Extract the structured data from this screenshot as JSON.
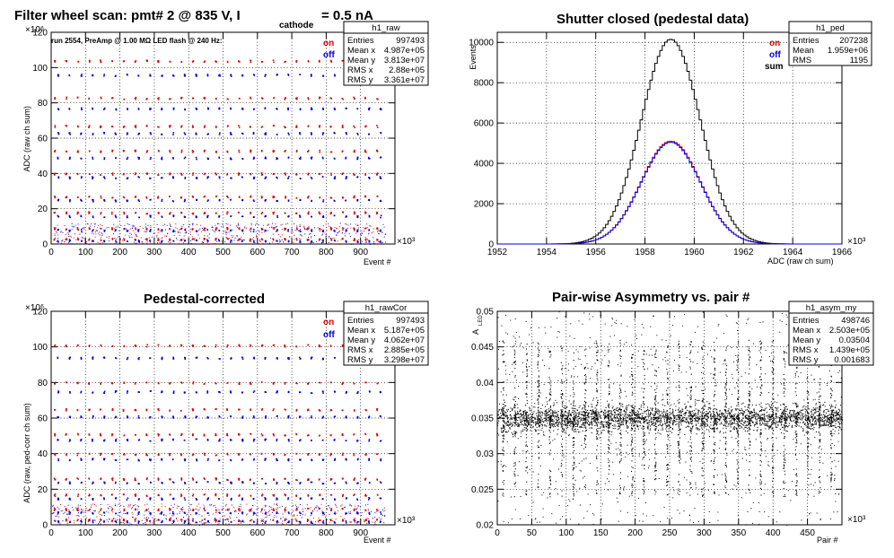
{
  "panels": {
    "raw": {
      "title_prefix": "Filter wheel scan: pmt#   2 @   835 V, I",
      "title_subscript": "cathode",
      "title_suffix": "= 0.5 nA",
      "run_info": "run 2554, PreAmp @ 1.00 MΩ   LED flash @  240 Hz:",
      "y_exponent": "×10⁶",
      "x_exponent": "×10³",
      "xlabel": "Event #",
      "ylabel": "ADC (raw ch sum)",
      "legend_on": "on",
      "legend_off": "off",
      "stats": {
        "name": "h1_raw",
        "rows": [
          [
            "Entries",
            "997493"
          ],
          [
            "Mean x",
            "4.987e+05"
          ],
          [
            "Mean y",
            "3.813e+07"
          ],
          [
            "RMS x",
            "2.88e+05"
          ],
          [
            "RMS y",
            "3.361e+07"
          ]
        ]
      }
    },
    "ped": {
      "title": "Shutter closed (pedestal data)",
      "ylabel": "Events",
      "x_exponent": "×10³",
      "xlabel": "ADC (raw ch sum)",
      "legend_on": "on",
      "legend_off": "off",
      "legend_sum": "sum",
      "stats": {
        "name": "h1_ped",
        "rows": [
          [
            "Entries",
            "207238"
          ],
          [
            "Mean",
            "1.959e+06"
          ],
          [
            "RMS",
            "1195"
          ]
        ]
      }
    },
    "cor": {
      "title": "Pedestal-corrected",
      "y_exponent": "×10⁶",
      "x_exponent": "×10³",
      "xlabel": "Event #",
      "ylabel": "ADC (raw, ped-corr ch sum)",
      "legend_on": "on",
      "legend_off": "off",
      "stats": {
        "name": "h1_rawCor",
        "rows": [
          [
            "Entries",
            "997493"
          ],
          [
            "Mean x",
            "5.187e+05"
          ],
          [
            "Mean y",
            "4.062e+07"
          ],
          [
            "RMS x",
            "2.885e+05"
          ],
          [
            "RMS y",
            "3.298e+07"
          ]
        ]
      }
    },
    "asym": {
      "title": "Pair-wise Asymmetry vs. pair #",
      "ylabel": "A",
      "ylabel_sub": "LED",
      "x_exponent": "×10³",
      "xlabel": "Pair #",
      "stats": {
        "name": "h1_asym_my",
        "rows": [
          [
            "Entries",
            "498746"
          ],
          [
            "Mean x",
            "2.503e+05"
          ],
          [
            "Mean y",
            "0.03504"
          ],
          [
            "RMS x",
            "1.439e+05"
          ],
          [
            "RMS y",
            "0.001683"
          ]
        ]
      }
    }
  },
  "colors": {
    "on": "#e00000",
    "off": "#0000e0",
    "sum": "#000000",
    "grid": "#000000"
  },
  "chart_data": [
    {
      "type": "scatter",
      "title": "Filter wheel scan: pmt#   2 @   835 V, I cathode = 0.5 nA",
      "xlabel": "Event #",
      "ylabel": "ADC (raw ch sum)",
      "x_scale_label": "×10³",
      "y_scale_label": "×10⁶",
      "xlim": [
        0,
        1000
      ],
      "ylim": [
        0,
        120
      ],
      "xticks": [
        0,
        100,
        200,
        300,
        400,
        500,
        600,
        700,
        800,
        900
      ],
      "yticks": [
        0,
        20,
        40,
        60,
        80,
        100,
        120
      ],
      "grid": true,
      "filter_step_events_k": 33.5,
      "series": [
        {
          "name": "on",
          "color": "#e00000",
          "levels": [
            104,
            83,
            67,
            53,
            40,
            27,
            18,
            9,
            3
          ]
        },
        {
          "name": "off",
          "color": "#0000e0",
          "levels": [
            96,
            77,
            63,
            49,
            38,
            25,
            16,
            8,
            2
          ]
        }
      ]
    },
    {
      "type": "line",
      "title": "Shutter closed (pedestal data)",
      "xlabel": "ADC (raw ch sum)",
      "ylabel": "Events",
      "x_scale_label": "×10³",
      "xlim": [
        1952,
        1966
      ],
      "ylim": [
        0,
        10500
      ],
      "xticks": [
        1952,
        1954,
        1956,
        1958,
        1960,
        1962,
        1964,
        1966
      ],
      "yticks": [
        0,
        2000,
        4000,
        6000,
        8000,
        10000
      ],
      "grid": true,
      "series": [
        {
          "name": "sum",
          "color": "#000000",
          "peak_x": 1959.05,
          "peak": 10150,
          "sigma": 1.2
        },
        {
          "name": "on",
          "color": "#e00000",
          "peak_x": 1959.05,
          "peak": 5100,
          "sigma": 1.2
        },
        {
          "name": "off",
          "color": "#0000e0",
          "peak_x": 1959.05,
          "peak": 5050,
          "sigma": 1.2
        }
      ]
    },
    {
      "type": "scatter",
      "title": "Pedestal-corrected",
      "xlabel": "Event #",
      "ylabel": "ADC (raw, ped-corr ch sum)",
      "x_scale_label": "×10³",
      "y_scale_label": "×10⁶",
      "xlim": [
        0,
        1000
      ],
      "ylim": [
        0,
        120
      ],
      "xticks": [
        0,
        100,
        200,
        300,
        400,
        500,
        600,
        700,
        800,
        900
      ],
      "yticks": [
        0,
        20,
        40,
        60,
        80,
        100,
        120
      ],
      "grid": true,
      "filter_step_events_k": 33.5,
      "series": [
        {
          "name": "on",
          "color": "#e00000",
          "levels": [
            101,
            80,
            65,
            51,
            40,
            26,
            17,
            9,
            3
          ]
        },
        {
          "name": "off",
          "color": "#0000e0",
          "levels": [
            94,
            75,
            61,
            48,
            37,
            24,
            15,
            7,
            2
          ]
        }
      ]
    },
    {
      "type": "scatter",
      "title": "Pair-wise Asymmetry vs. pair #",
      "xlabel": "Pair #",
      "ylabel": "A LED",
      "x_scale_label": "×10³",
      "xlim": [
        0,
        500
      ],
      "ylim": [
        0.02,
        0.05
      ],
      "xticks": [
        0,
        50,
        100,
        150,
        200,
        250,
        300,
        350,
        400,
        450
      ],
      "yticks": [
        0.02,
        0.025,
        0.03,
        0.035,
        0.04,
        0.045,
        0.05
      ],
      "grid": true,
      "band_center": 0.035,
      "band_halfwidth": 0.0012,
      "spike_period_k": 17
    }
  ]
}
